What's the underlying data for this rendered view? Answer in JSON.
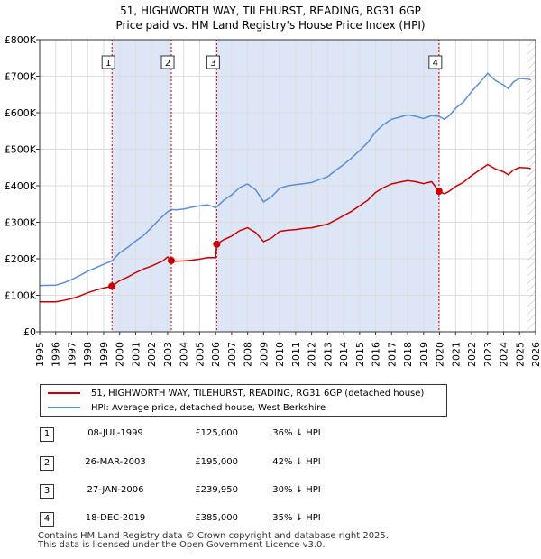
{
  "chart_data": {
    "type": "line",
    "title": "51, HIGHWORTH WAY, TILEHURST, READING, RG31 6GP",
    "subtitle": "Price paid vs. HM Land Registry's House Price Index (HPI)",
    "xlim": [
      1995,
      2026
    ],
    "ylim": [
      0,
      800000
    ],
    "x_ticks": [
      1995,
      1996,
      1997,
      1998,
      1999,
      2000,
      2001,
      2002,
      2003,
      2004,
      2005,
      2006,
      2007,
      2008,
      2009,
      2010,
      2011,
      2012,
      2013,
      2014,
      2015,
      2016,
      2017,
      2018,
      2019,
      2020,
      2021,
      2022,
      2023,
      2024,
      2025,
      2026
    ],
    "y_ticks": [
      {
        "value": 0,
        "label": "£0"
      },
      {
        "value": 100000,
        "label": "£100K"
      },
      {
        "value": 200000,
        "label": "£200K"
      },
      {
        "value": 300000,
        "label": "£300K"
      },
      {
        "value": 400000,
        "label": "£400K"
      },
      {
        "value": 500000,
        "label": "£500K"
      },
      {
        "value": 600000,
        "label": "£600K"
      },
      {
        "value": 700000,
        "label": "£700K"
      },
      {
        "value": 800000,
        "label": "£800K"
      }
    ],
    "grid": true,
    "series": [
      {
        "name": "51, HIGHWORTH WAY, TILEHURST, READING, RG31 6GP (detached house)",
        "color": "#cc0000",
        "points": [
          [
            1995.0,
            82000
          ],
          [
            1996.0,
            82000
          ],
          [
            1996.5,
            86000
          ],
          [
            1997.0,
            91000
          ],
          [
            1997.5,
            98000
          ],
          [
            1998.0,
            107000
          ],
          [
            1998.5,
            114000
          ],
          [
            1999.0,
            120000
          ],
          [
            1999.52,
            125000
          ],
          [
            2000.0,
            140000
          ],
          [
            2000.5,
            150000
          ],
          [
            2001.0,
            162000
          ],
          [
            2001.5,
            172000
          ],
          [
            2002.0,
            180000
          ],
          [
            2002.7,
            194000
          ],
          [
            2003.0,
            205000
          ],
          [
            2003.23,
            195000
          ],
          [
            2003.5,
            193000
          ],
          [
            2004.0,
            194000
          ],
          [
            2004.5,
            196000
          ],
          [
            2005.0,
            199000
          ],
          [
            2005.5,
            203000
          ],
          [
            2006.0,
            203000
          ],
          [
            2006.07,
            239950
          ],
          [
            2006.5,
            252000
          ],
          [
            2007.0,
            262000
          ],
          [
            2007.5,
            277000
          ],
          [
            2008.0,
            285000
          ],
          [
            2008.5,
            272000
          ],
          [
            2009.0,
            247000
          ],
          [
            2009.5,
            257000
          ],
          [
            2010.0,
            275000
          ],
          [
            2010.5,
            278000
          ],
          [
            2011.0,
            280000
          ],
          [
            2011.5,
            283000
          ],
          [
            2012.0,
            285000
          ],
          [
            2012.5,
            290000
          ],
          [
            2013.0,
            295000
          ],
          [
            2013.5,
            306000
          ],
          [
            2014.0,
            318000
          ],
          [
            2014.5,
            330000
          ],
          [
            2015.0,
            345000
          ],
          [
            2015.5,
            360000
          ],
          [
            2016.0,
            382000
          ],
          [
            2016.5,
            395000
          ],
          [
            2017.0,
            405000
          ],
          [
            2017.5,
            410000
          ],
          [
            2018.0,
            414000
          ],
          [
            2018.5,
            411000
          ],
          [
            2019.0,
            406000
          ],
          [
            2019.5,
            411000
          ],
          [
            2019.96,
            385000
          ],
          [
            2020.3,
            378000
          ],
          [
            2020.6,
            385000
          ],
          [
            2021.0,
            398000
          ],
          [
            2021.5,
            410000
          ],
          [
            2022.0,
            428000
          ],
          [
            2022.5,
            443000
          ],
          [
            2023.0,
            458000
          ],
          [
            2023.5,
            446000
          ],
          [
            2024.0,
            438000
          ],
          [
            2024.3,
            430000
          ],
          [
            2024.6,
            443000
          ],
          [
            2025.0,
            450000
          ],
          [
            2025.5,
            449000
          ],
          [
            2025.7,
            447000
          ]
        ]
      },
      {
        "name": "HPI: Average price, detached house, West Berkshire",
        "color": "#5b8fd4",
        "points": [
          [
            1995.0,
            127000
          ],
          [
            1996.0,
            128000
          ],
          [
            1996.5,
            134000
          ],
          [
            1997.0,
            143000
          ],
          [
            1997.5,
            154000
          ],
          [
            1998.0,
            166000
          ],
          [
            1998.5,
            175000
          ],
          [
            1999.0,
            185000
          ],
          [
            1999.52,
            194000
          ],
          [
            2000.0,
            216000
          ],
          [
            2000.5,
            231000
          ],
          [
            2001.0,
            249000
          ],
          [
            2001.5,
            264000
          ],
          [
            2002.0,
            286000
          ],
          [
            2002.5,
            309000
          ],
          [
            2003.0,
            329000
          ],
          [
            2003.23,
            335000
          ],
          [
            2003.5,
            334000
          ],
          [
            2004.0,
            336000
          ],
          [
            2004.5,
            341000
          ],
          [
            2005.0,
            345000
          ],
          [
            2005.5,
            348000
          ],
          [
            2006.0,
            340000
          ],
          [
            2006.07,
            342000
          ],
          [
            2006.5,
            360000
          ],
          [
            2007.0,
            375000
          ],
          [
            2007.5,
            395000
          ],
          [
            2008.0,
            405000
          ],
          [
            2008.5,
            389000
          ],
          [
            2009.0,
            356000
          ],
          [
            2009.5,
            370000
          ],
          [
            2010.0,
            393000
          ],
          [
            2010.5,
            400000
          ],
          [
            2011.0,
            403000
          ],
          [
            2011.5,
            406000
          ],
          [
            2012.0,
            409000
          ],
          [
            2012.5,
            417000
          ],
          [
            2013.0,
            425000
          ],
          [
            2013.5,
            442000
          ],
          [
            2014.0,
            458000
          ],
          [
            2014.5,
            476000
          ],
          [
            2015.0,
            496000
          ],
          [
            2015.5,
            518000
          ],
          [
            2016.0,
            548000
          ],
          [
            2016.5,
            568000
          ],
          [
            2017.0,
            582000
          ],
          [
            2017.5,
            588000
          ],
          [
            2018.0,
            594000
          ],
          [
            2018.5,
            590000
          ],
          [
            2019.0,
            584000
          ],
          [
            2019.5,
            592000
          ],
          [
            2019.96,
            590000
          ],
          [
            2020.3,
            582000
          ],
          [
            2020.6,
            592000
          ],
          [
            2021.0,
            612000
          ],
          [
            2021.5,
            630000
          ],
          [
            2022.0,
            658000
          ],
          [
            2022.5,
            682000
          ],
          [
            2023.0,
            708000
          ],
          [
            2023.5,
            688000
          ],
          [
            2024.0,
            676000
          ],
          [
            2024.3,
            666000
          ],
          [
            2024.6,
            684000
          ],
          [
            2025.0,
            694000
          ],
          [
            2025.5,
            692000
          ],
          [
            2025.7,
            690000
          ]
        ]
      }
    ],
    "sales": [
      {
        "num": "1",
        "x": 1999.52,
        "price": 125000,
        "date": "08-JUL-1999",
        "price_label": "£125,000",
        "hpi": "36% ↓ HPI"
      },
      {
        "num": "2",
        "x": 2003.23,
        "price": 195000,
        "date": "26-MAR-2003",
        "price_label": "£195,000",
        "hpi": "42% ↓ HPI"
      },
      {
        "num": "3",
        "x": 2006.07,
        "price": 239950,
        "date": "27-JAN-2006",
        "price_label": "£239,950",
        "hpi": "30% ↓ HPI"
      },
      {
        "num": "4",
        "x": 2019.96,
        "price": 385000,
        "date": "18-DEC-2019",
        "price_label": "£385,000",
        "hpi": "35% ↓ HPI"
      }
    ],
    "shaded_ranges": [
      [
        1999.52,
        2003.23
      ],
      [
        2006.07,
        2019.96
      ]
    ],
    "forecast_start": 2025.5
  },
  "footer": {
    "line1": "Contains HM Land Registry data © Crown copyright and database right 2025.",
    "line2": "This data is licensed under the Open Government Licence v3.0."
  },
  "colors": {
    "property": "#cc0000",
    "hpi": "#5b8fd4",
    "shade": "#dde6f7",
    "grid": "#dddddd"
  }
}
